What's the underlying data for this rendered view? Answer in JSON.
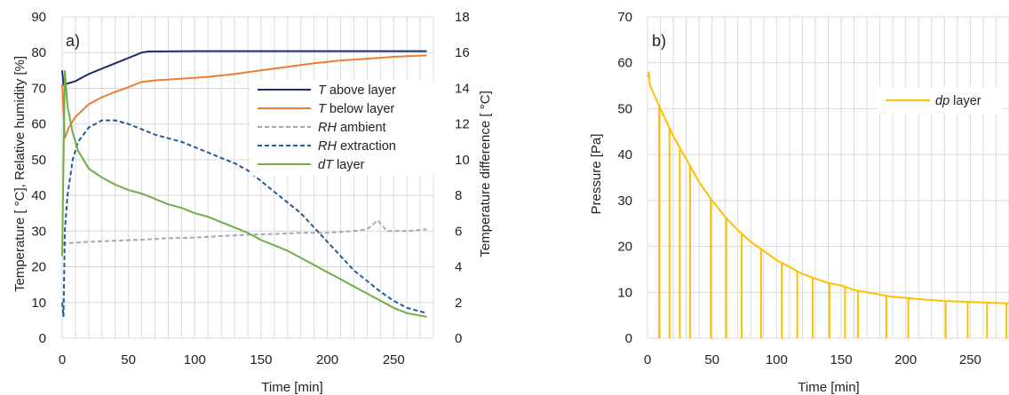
{
  "chart_data": [
    {
      "type": "line",
      "panel_label": "a)",
      "xlabel": "Time [min]",
      "ylabel_left": "Temperature [ °C], Relative humidity [%]",
      "ylabel_right": "Temperature difference [ °C]",
      "xlim": [
        0,
        280
      ],
      "ylim_left": [
        0,
        90
      ],
      "ylim_right": [
        0,
        18
      ],
      "x_ticks": [
        "0",
        "50",
        "100",
        "150",
        "200",
        "250"
      ],
      "y_ticks_left": [
        "0",
        "10",
        "20",
        "30",
        "40",
        "50",
        "60",
        "70",
        "80",
        "90"
      ],
      "y_ticks_right": [
        "0",
        "2",
        "4",
        "6",
        "8",
        "10",
        "12",
        "14",
        "16",
        "18"
      ],
      "grid": "both",
      "legend_position": "top-right",
      "series": [
        {
          "name": "T above layer",
          "name_italic": "T",
          "name_rest": " above layer",
          "axis": "left",
          "style": "solid",
          "color": "#1f2d6b",
          "points": [
            [
              0,
              75
            ],
            [
              1,
              71
            ],
            [
              10,
              72
            ],
            [
              20,
              74
            ],
            [
              30,
              75.5
            ],
            [
              40,
              77
            ],
            [
              50,
              78.5
            ],
            [
              60,
              80
            ],
            [
              65,
              80.3
            ],
            [
              100,
              80.4
            ],
            [
              150,
              80.4
            ],
            [
              200,
              80.4
            ],
            [
              250,
              80.4
            ],
            [
              275,
              80.4
            ]
          ]
        },
        {
          "name": "T below layer",
          "name_italic": "T",
          "name_rest": " below layer",
          "axis": "left",
          "style": "solid",
          "color": "#ed7d31",
          "points": [
            [
              0,
              71
            ],
            [
              2,
              56
            ],
            [
              5,
              59
            ],
            [
              10,
              62
            ],
            [
              20,
              65.5
            ],
            [
              30,
              67.5
            ],
            [
              40,
              69
            ],
            [
              50,
              70.3
            ],
            [
              60,
              71.8
            ],
            [
              70,
              72.2
            ],
            [
              90,
              72.7
            ],
            [
              110,
              73.2
            ],
            [
              130,
              74
            ],
            [
              150,
              75
            ],
            [
              170,
              76
            ],
            [
              190,
              77
            ],
            [
              210,
              77.8
            ],
            [
              230,
              78.3
            ],
            [
              250,
              78.8
            ],
            [
              275,
              79.2
            ]
          ]
        },
        {
          "name": "RH ambient",
          "name_italic": "RH",
          "name_rest": " ambient",
          "axis": "left",
          "style": "dashed",
          "color": "#a9a9a9",
          "points": [
            [
              0,
              26.5
            ],
            [
              20,
              27
            ],
            [
              40,
              27.3
            ],
            [
              60,
              27.6
            ],
            [
              80,
              28
            ],
            [
              100,
              28.2
            ],
            [
              120,
              28.6
            ],
            [
              140,
              29
            ],
            [
              160,
              29.2
            ],
            [
              180,
              29.5
            ],
            [
              200,
              29.5
            ],
            [
              220,
              30
            ],
            [
              230,
              30.5
            ],
            [
              238,
              33
            ],
            [
              245,
              30
            ],
            [
              260,
              30
            ],
            [
              275,
              30.5
            ]
          ]
        },
        {
          "name": "RH extraction",
          "name_italic": "RH",
          "name_rest": " extraction",
          "axis": "left",
          "style": "dashed",
          "color": "#1f5c99",
          "points": [
            [
              0,
              10
            ],
            [
              1,
              6
            ],
            [
              2,
              30
            ],
            [
              4,
              40
            ],
            [
              8,
              50
            ],
            [
              12,
              55
            ],
            [
              20,
              59
            ],
            [
              30,
              61
            ],
            [
              40,
              61
            ],
            [
              50,
              60
            ],
            [
              60,
              58.5
            ],
            [
              70,
              57
            ],
            [
              80,
              56
            ],
            [
              90,
              55
            ],
            [
              100,
              53.5
            ],
            [
              110,
              52
            ],
            [
              120,
              50.5
            ],
            [
              130,
              49
            ],
            [
              140,
              47
            ],
            [
              150,
              44
            ],
            [
              160,
              41
            ],
            [
              170,
              38
            ],
            [
              180,
              35
            ],
            [
              190,
              31
            ],
            [
              200,
              27
            ],
            [
              210,
              23
            ],
            [
              220,
              19
            ],
            [
              230,
              16
            ],
            [
              240,
              13
            ],
            [
              250,
              10.5
            ],
            [
              260,
              8.5
            ],
            [
              275,
              7
            ]
          ]
        },
        {
          "name": "dT layer",
          "name_italic": "dT",
          "name_rest": " layer",
          "axis": "right",
          "style": "solid",
          "color": "#70ad47",
          "points": [
            [
              0,
              4.6
            ],
            [
              2,
              15
            ],
            [
              4,
              13
            ],
            [
              8,
              11.5
            ],
            [
              12,
              10.5
            ],
            [
              20,
              9.5
            ],
            [
              30,
              9
            ],
            [
              40,
              8.6
            ],
            [
              50,
              8.3
            ],
            [
              60,
              8.1
            ],
            [
              70,
              7.8
            ],
            [
              80,
              7.5
            ],
            [
              90,
              7.3
            ],
            [
              100,
              7.0
            ],
            [
              110,
              6.8
            ],
            [
              120,
              6.5
            ],
            [
              130,
              6.2
            ],
            [
              140,
              5.9
            ],
            [
              150,
              5.5
            ],
            [
              160,
              5.2
            ],
            [
              170,
              4.9
            ],
            [
              180,
              4.5
            ],
            [
              190,
              4.1
            ],
            [
              200,
              3.7
            ],
            [
              210,
              3.3
            ],
            [
              220,
              2.9
            ],
            [
              230,
              2.5
            ],
            [
              240,
              2.1
            ],
            [
              250,
              1.7
            ],
            [
              260,
              1.4
            ],
            [
              275,
              1.2
            ]
          ]
        }
      ]
    },
    {
      "type": "line",
      "panel_label": "b)",
      "xlabel": "Time [min]",
      "ylabel": "Pressure [Pa]",
      "xlim": [
        0,
        280
      ],
      "ylim": [
        0,
        70
      ],
      "x_ticks": [
        "0",
        "50",
        "100",
        "150",
        "200",
        "250"
      ],
      "y_ticks": [
        "0",
        "10",
        "20",
        "30",
        "40",
        "50",
        "60",
        "70"
      ],
      "grid": "both",
      "legend_position": "top-right",
      "series": [
        {
          "name": "dp layer",
          "name_italic": "dp",
          "name_rest": " layer",
          "style": "solid",
          "color": "#ffc000",
          "envelope": [
            [
              0,
              57
            ],
            [
              1,
              58
            ],
            [
              2,
              55
            ],
            [
              10,
              50
            ],
            [
              20,
              44
            ],
            [
              30,
              39
            ],
            [
              40,
              34
            ],
            [
              50,
              30
            ],
            [
              60,
              26.5
            ],
            [
              70,
              23.5
            ],
            [
              80,
              21
            ],
            [
              90,
              19
            ],
            [
              100,
              17
            ],
            [
              110,
              15.5
            ],
            [
              120,
              14
            ],
            [
              130,
              13
            ],
            [
              140,
              12
            ],
            [
              150,
              11.5
            ],
            [
              160,
              10.5
            ],
            [
              170,
              10
            ],
            [
              180,
              9.5
            ],
            [
              190,
              9
            ],
            [
              200,
              8.8
            ],
            [
              210,
              8.5
            ],
            [
              220,
              8.3
            ],
            [
              230,
              8.1
            ],
            [
              240,
              8
            ],
            [
              250,
              7.9
            ],
            [
              260,
              7.8
            ],
            [
              270,
              7.7
            ],
            [
              280,
              7.6
            ]
          ],
          "spike_times": [
            9,
            17,
            25,
            33,
            49,
            61,
            73,
            88,
            104,
            116,
            128,
            141,
            153,
            163,
            185,
            202,
            231,
            248,
            263,
            278
          ]
        }
      ]
    }
  ]
}
